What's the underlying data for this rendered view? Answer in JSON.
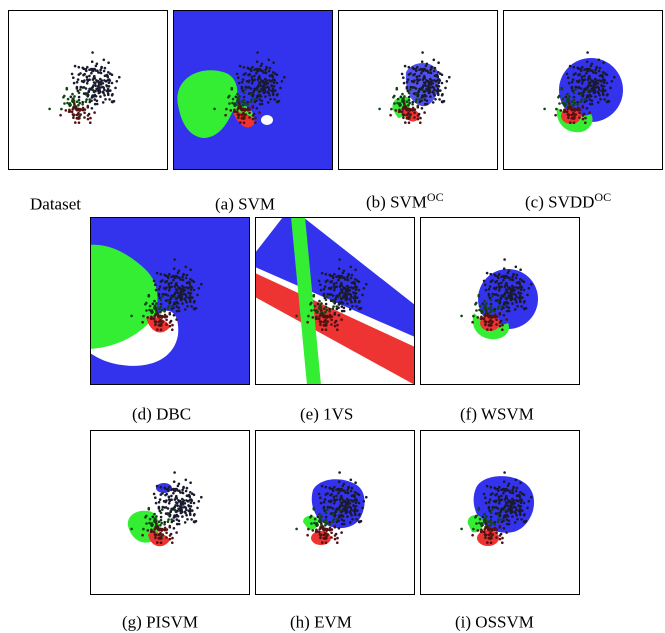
{
  "colors": {
    "blue": "#3333ee",
    "green": "#33ee33",
    "red": "#ee3333",
    "point": "#1a1a2e",
    "frame": "#000000",
    "background": "#ffffff"
  },
  "panels": [
    {
      "id": "dataset",
      "label": "Dataset",
      "sup": ""
    },
    {
      "id": "svm",
      "label": "(a)  SVM",
      "sup": ""
    },
    {
      "id": "svm-oc",
      "label": "(b)  SVM",
      "sup": "OC"
    },
    {
      "id": "svdd-oc",
      "label": "(c)  SVDD",
      "sup": "OC"
    },
    {
      "id": "dbc",
      "label": "(d)  DBC",
      "sup": ""
    },
    {
      "id": "1vs",
      "label": "(e)  1VS",
      "sup": ""
    },
    {
      "id": "wsvm",
      "label": "(f)  WSVM",
      "sup": ""
    },
    {
      "id": "pisvm",
      "label": "(g)  PISVM",
      "sup": ""
    },
    {
      "id": "evm",
      "label": "(h)  EVM",
      "sup": ""
    },
    {
      "id": "ossvm",
      "label": "(i)  OSSVM",
      "sup": ""
    }
  ]
}
